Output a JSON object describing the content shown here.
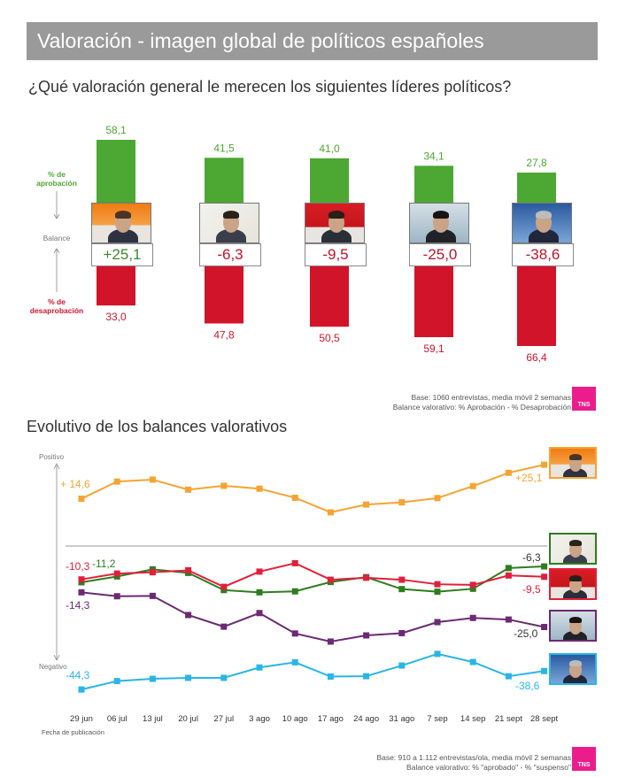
{
  "header": {
    "title": "Valoración - imagen global de políticos españoles",
    "question": "¿Qué valoración general le merecen los siguientes líderes políticos?",
    "section2_title": "Evolutivo de los balances valorativos"
  },
  "legend": {
    "approval": "% de aprobación",
    "balance": "Balance",
    "disapproval": "% de desaprobación"
  },
  "colors": {
    "approval": "#4ca832",
    "disapproval": "#d2142b",
    "positive_balance": "#3a8a2a",
    "negative_balance": "#c0122a",
    "orange": "#f5a433",
    "darkgreen": "#2e7d1f",
    "red": "#e0203a",
    "purple": "#6b2a73",
    "cyan": "#29b6e6",
    "brand": "#ec1c8d"
  },
  "notes": {
    "note1_line1": "Base: 1060 entrevistas, media móvil 2 semanas",
    "note1_line2": "Balance valorativo: % Aprobación - % Desaprobación",
    "note2_line1": "Base: 910 a 1.112 entrevistas/ola, media móvil 2 semanas",
    "note2_line2": "Balance valorativo: % \"aprobado\" - % \"suspenso\"",
    "brand": "TNS"
  },
  "chart_data": [
    {
      "type": "bar",
      "categories": [
        "1",
        "2",
        "3",
        "4",
        "5"
      ],
      "series": [
        {
          "values": [
            58.1,
            41.5,
            41.0,
            34.1,
            27.8
          ]
        },
        {
          "values": [
            33.0,
            47.8,
            50.5,
            59.1,
            66.4
          ]
        }
      ],
      "approval_labels": [
        "58,1",
        "41,5",
        "41,0",
        "34,1",
        "27,8"
      ],
      "disapproval_labels": [
        "33,0",
        "47,8",
        "50,5",
        "59,1",
        "66,4"
      ],
      "balances": [
        25.1,
        -6.3,
        -9.5,
        -25.0,
        -38.6
      ],
      "balance_labels": [
        "+25,1",
        "-6,3",
        "-9,5",
        "-25,0",
        "-38,6"
      ],
      "photo_icons": [
        "leader-1-photo",
        "leader-2-photo",
        "leader-3-photo",
        "leader-4-photo",
        "leader-5-photo"
      ]
    },
    {
      "type": "line",
      "x": [
        "29 jun",
        "06 jul",
        "13 jul",
        "20 jul",
        "27 jul",
        "3 ago",
        "10 ago",
        "17 ago",
        "24 ago",
        "31 ago",
        "7 sep",
        "14 sep",
        "21 sept",
        "28 sept"
      ],
      "xlabel": "Fecha de publicación",
      "y_top_label": "Positivo",
      "y_bottom_label": "Negativo",
      "series": [
        {
          "color": "#f5a433",
          "values": [
            14.6,
            19.9,
            20.5,
            17.4,
            18.6,
            17.7,
            14.9,
            10.4,
            12.8,
            13.5,
            14.8,
            18.5,
            22.6,
            25.1
          ],
          "start_label": "+ 14,6",
          "end_label": "+25,1"
        },
        {
          "color": "#2e7d1f",
          "values": [
            -11.2,
            -9.4,
            -7.2,
            -8.3,
            -13.6,
            -14.3,
            -14.0,
            -11.1,
            -9.6,
            -13.3,
            -14.1,
            -13.2,
            -6.8,
            -6.3
          ],
          "start_label": "-11,2",
          "end_label": "-6,3"
        },
        {
          "color": "#e0203a",
          "values": [
            -10.3,
            -8.5,
            -8.1,
            -7.5,
            -12.6,
            -7.9,
            -5.3,
            -10.4,
            -9.8,
            -10.4,
            -11.8,
            -12.0,
            -9.1,
            -9.5
          ],
          "start_label": "-10,3",
          "end_label": "-9,5"
        },
        {
          "color": "#6b2a73",
          "values": [
            -14.3,
            -15.5,
            -15.4,
            -21.3,
            -24.9,
            -20.7,
            -27.0,
            -29.5,
            -27.6,
            -26.9,
            -23.5,
            -22.2,
            -22.7,
            -25.0
          ],
          "start_label": "-14,3",
          "end_label": "-25,0"
        },
        {
          "color": "#29b6e6",
          "values": [
            -44.3,
            -41.7,
            -41.0,
            -40.7,
            -40.7,
            -37.5,
            -35.9,
            -40.3,
            -40.2,
            -36.9,
            -33.3,
            -35.8,
            -40.2,
            -38.6
          ],
          "start_label": "-44,3",
          "end_label": "-38,6"
        }
      ],
      "photo_icons": [
        "leader-1-photo",
        "leader-2-photo",
        "leader-3-photo",
        "leader-4-photo",
        "leader-5-photo"
      ]
    }
  ]
}
